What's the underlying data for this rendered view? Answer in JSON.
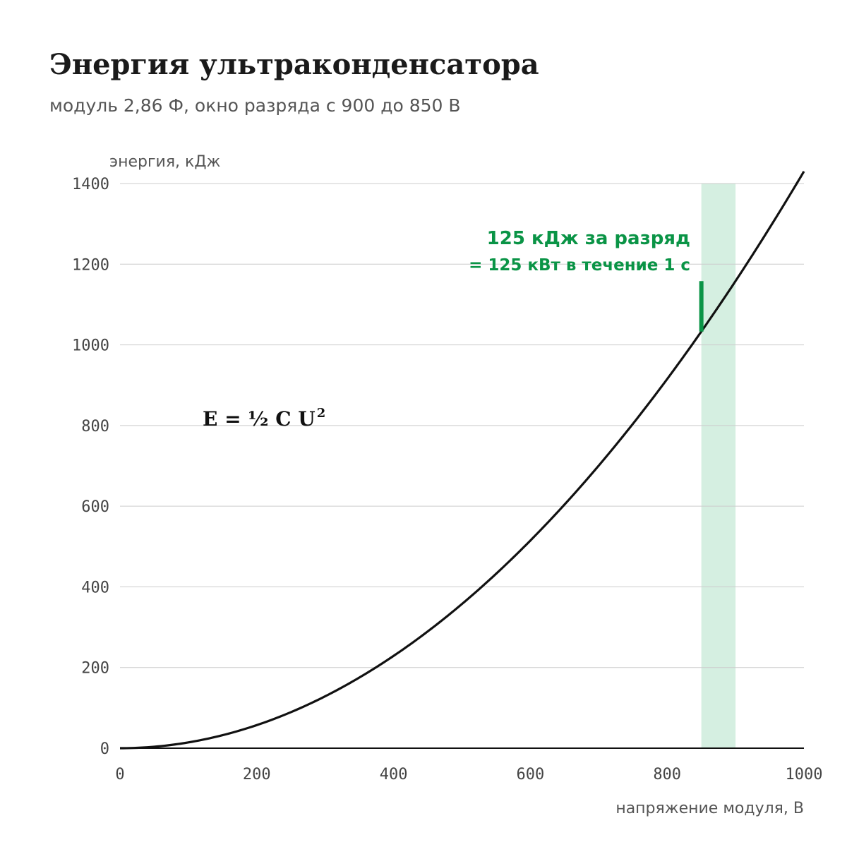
{
  "title": "Энергия ультраконденсатора",
  "subtitle": "модуль 2,86 Ф, окно разряда с 900 до 850 В",
  "formula": {
    "main": "E = ½ C U",
    "sup": "2"
  },
  "colors": {
    "curve": "#111111",
    "band": "#d5efe1",
    "accent": "#0a9446",
    "grid": "#cccccc"
  },
  "chart_data": {
    "type": "line",
    "xlabel": "напряжение модуля, В",
    "ylabel": "энергия, кДж",
    "xlim": [
      0,
      1000
    ],
    "ylim": [
      0,
      1400
    ],
    "xticks": [
      0,
      200,
      400,
      600,
      800,
      1000
    ],
    "yticks": [
      0,
      200,
      400,
      600,
      800,
      1000,
      1200,
      1400
    ],
    "capacitance_F": 2.86,
    "series": [
      {
        "formula": "E = 0.5 * C * U^2 / 1000",
        "x_range": [
          0,
          1000
        ],
        "y_at_850": 1033,
        "y_at_900": 1158,
        "y_at_1000": 1430
      }
    ],
    "band": {
      "x": [
        850,
        900
      ]
    },
    "marker": {
      "x": 850,
      "y": [
        1033,
        1158
      ]
    },
    "annotation": {
      "line1": "125 кДж за разряд",
      "line2": "= 125 кВт в течение 1 с",
      "x": 850
    },
    "grid": true
  }
}
